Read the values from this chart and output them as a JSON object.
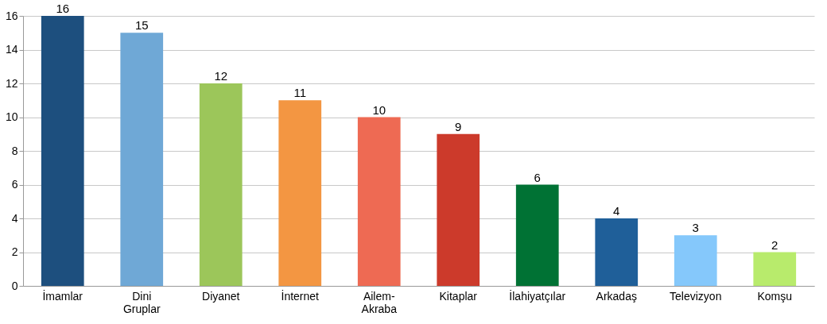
{
  "chart_data": {
    "type": "bar",
    "categories": [
      "İmamlar",
      "Dini Gruplar",
      "Diyanet",
      "İnternet",
      "Ailem-Akraba",
      "Kitaplar",
      "İlahiyatçılar",
      "Arkadaş",
      "Televizyon",
      "Komşu"
    ],
    "values": [
      16,
      15,
      12,
      11,
      10,
      9,
      6,
      4,
      3,
      2
    ],
    "colors": [
      "#1d4f7e",
      "#6fa8d6",
      "#9cc65a",
      "#f39642",
      "#ee6a53",
      "#cc3a2b",
      "#007234",
      "#1f5f99",
      "#85c8fb",
      "#b8eb6c"
    ],
    "ylim": [
      0,
      16
    ],
    "yticks": [
      0,
      2,
      4,
      6,
      8,
      10,
      12,
      14,
      16
    ],
    "grid": "y",
    "data_labels": true,
    "legend": false
  }
}
